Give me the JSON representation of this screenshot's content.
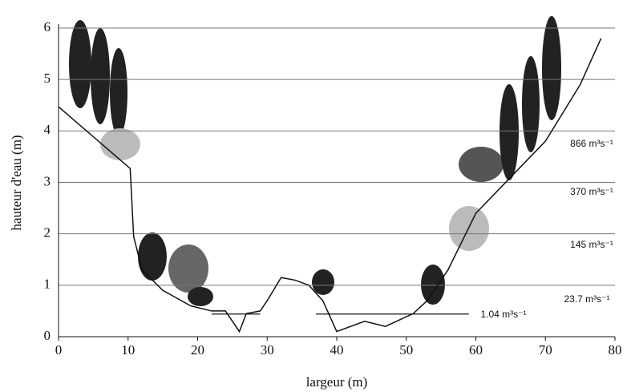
{
  "chart_data": {
    "type": "line",
    "x_label": "largeur (m)",
    "y_label": "hauteur d'eau (m)",
    "xlim": [
      0,
      80
    ],
    "xticks": [
      0,
      10,
      20,
      30,
      40,
      50,
      60,
      70,
      80
    ],
    "ylim": [
      0,
      6
    ],
    "yticks": [
      0,
      1,
      2,
      3,
      4,
      5,
      6
    ],
    "grid": true,
    "color": "#111111",
    "profile": {
      "x": [
        0,
        10.3,
        10.8,
        12,
        15,
        19,
        22,
        24,
        26,
        27,
        29,
        30,
        32,
        34,
        36,
        38,
        40,
        44,
        47,
        51,
        53,
        56,
        60,
        65,
        70,
        75,
        78
      ],
      "y": [
        4.47,
        3.27,
        1.95,
        1.3,
        0.9,
        0.6,
        0.5,
        0.5,
        0.1,
        0.45,
        0.5,
        0.7,
        1.15,
        1.1,
        1.0,
        0.7,
        0.1,
        0.3,
        0.2,
        0.45,
        0.7,
        1.3,
        2.4,
        3.1,
        3.8,
        4.9,
        5.8
      ]
    },
    "water_surface": {
      "x": [
        22,
        29,
        33,
        37,
        59
      ],
      "y": [
        0.44,
        0.44,
        null,
        0.44,
        0.44
      ]
    },
    "annotations": [
      "866 m³s⁻¹",
      "370 m³s⁻¹",
      "145 m³s⁻¹",
      "23.7 m³s⁻¹",
      "1.04 m³s⁻¹"
    ]
  }
}
